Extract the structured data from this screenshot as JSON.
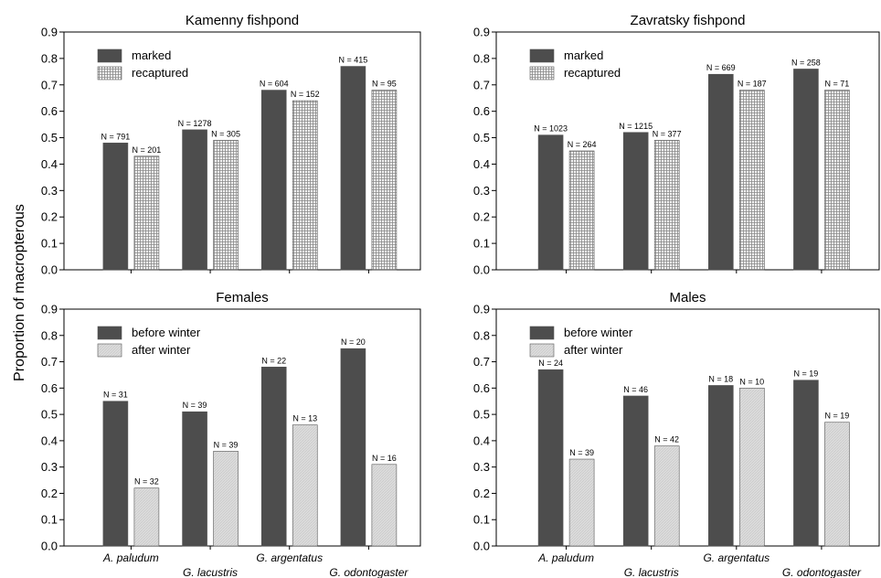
{
  "figure": {
    "ylabel": "Proportion of macropterous"
  },
  "colors": {
    "dark_bar": "#4d4d4d",
    "hatch_bar": "#c8c8c8",
    "light_bar": "#d9d9d9",
    "axis": "#000000"
  },
  "chart_data": [
    {
      "type": "bar",
      "title": "Kamenny fishpond",
      "ylim": [
        0,
        0.9
      ],
      "yticks": [
        "0.0",
        "0.1",
        "0.2",
        "0.3",
        "0.4",
        "0.5",
        "0.6",
        "0.7",
        "0.8",
        "0.9"
      ],
      "legend_position": "top-left",
      "categories": [
        "A. paludum",
        "G. lacustris",
        "G. argentatus",
        "G. odontogaster"
      ],
      "show_category_labels": false,
      "series": [
        {
          "name": "marked",
          "style": "dark",
          "values": [
            0.48,
            0.53,
            0.68,
            0.77
          ],
          "labels": [
            "N = 791",
            "N = 1278",
            "N = 604",
            "N = 415"
          ]
        },
        {
          "name": "recaptured",
          "style": "hatch",
          "values": [
            0.43,
            0.49,
            0.64,
            0.68
          ],
          "labels": [
            "N = 201",
            "N = 305",
            "N = 152",
            "N = 95"
          ]
        }
      ]
    },
    {
      "type": "bar",
      "title": "Zavratsky fishpond",
      "ylim": [
        0,
        0.9
      ],
      "yticks": [
        "0.0",
        "0.1",
        "0.2",
        "0.3",
        "0.4",
        "0.5",
        "0.6",
        "0.7",
        "0.8",
        "0.9"
      ],
      "legend_position": "top-left",
      "categories": [
        "A. paludum",
        "G. lacustris",
        "G. argentatus",
        "G. odontogaster"
      ],
      "show_category_labels": false,
      "series": [
        {
          "name": "marked",
          "style": "dark",
          "values": [
            0.51,
            0.52,
            0.74,
            0.76
          ],
          "labels": [
            "N = 1023",
            "N = 1215",
            "N = 669",
            "N = 258"
          ]
        },
        {
          "name": "recaptured",
          "style": "hatch",
          "values": [
            0.45,
            0.49,
            0.68,
            0.68
          ],
          "labels": [
            "N = 264",
            "N = 377",
            "N = 187",
            "N = 71"
          ]
        }
      ]
    },
    {
      "type": "bar",
      "title": "Females",
      "ylim": [
        0,
        0.9
      ],
      "yticks": [
        "0.0",
        "0.1",
        "0.2",
        "0.3",
        "0.4",
        "0.5",
        "0.6",
        "0.7",
        "0.8",
        "0.9"
      ],
      "legend_position": "top-left",
      "categories": [
        "A. paludum",
        "G. lacustris",
        "G. argentatus",
        "G. odontogaster"
      ],
      "show_category_labels": true,
      "series": [
        {
          "name": "before winter",
          "style": "dark",
          "values": [
            0.55,
            0.51,
            0.68,
            0.75
          ],
          "labels": [
            "N = 31",
            "N = 39",
            "N = 22",
            "N = 20"
          ]
        },
        {
          "name": "after winter",
          "style": "light",
          "values": [
            0.22,
            0.36,
            0.46,
            0.31
          ],
          "labels": [
            "N = 32",
            "N = 39",
            "N = 13",
            "N = 16"
          ]
        }
      ]
    },
    {
      "type": "bar",
      "title": "Males",
      "ylim": [
        0,
        0.9
      ],
      "yticks": [
        "0.0",
        "0.1",
        "0.2",
        "0.3",
        "0.4",
        "0.5",
        "0.6",
        "0.7",
        "0.8",
        "0.9"
      ],
      "legend_position": "top-left",
      "categories": [
        "A. paludum",
        "G. lacustris",
        "G. argentatus",
        "G. odontogaster"
      ],
      "show_category_labels": true,
      "series": [
        {
          "name": "before winter",
          "style": "dark",
          "values": [
            0.67,
            0.57,
            0.61,
            0.63
          ],
          "labels": [
            "N = 24",
            "N = 46",
            "N = 18",
            "N = 19"
          ]
        },
        {
          "name": "after winter",
          "style": "light",
          "values": [
            0.33,
            0.38,
            0.6,
            0.47
          ],
          "labels": [
            "N = 39",
            "N = 42",
            "N = 10",
            "N = 19"
          ]
        }
      ]
    }
  ]
}
